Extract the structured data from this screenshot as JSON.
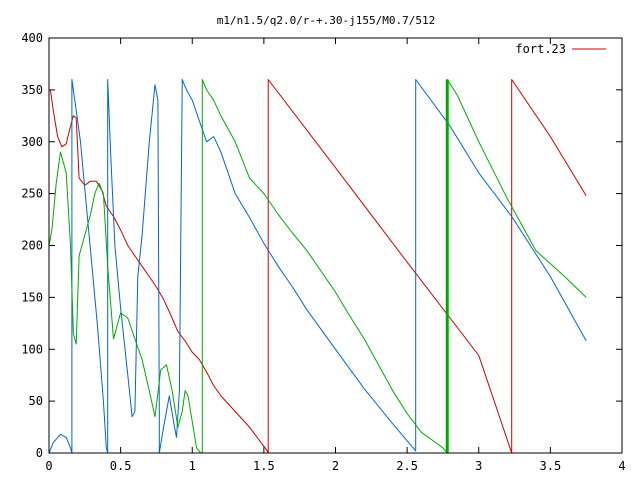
{
  "chart_data": {
    "type": "line",
    "title": "m1/n1.5/q2.0/r-+.30-j155/M0.7/512",
    "xlabel": "",
    "ylabel": "",
    "xlim": [
      0,
      4
    ],
    "ylim": [
      0,
      400
    ],
    "x_ticks": [
      0,
      0.5,
      1,
      1.5,
      2,
      2.5,
      3,
      3.5,
      4
    ],
    "x_tick_labels": [
      "0",
      "0.5",
      "1",
      "1.5",
      "2",
      "2.5",
      "3",
      "3.5",
      "4"
    ],
    "y_ticks": [
      0,
      50,
      100,
      150,
      200,
      250,
      300,
      350,
      400
    ],
    "y_tick_labels": [
      "0",
      "50",
      "100",
      "150",
      "200",
      "250",
      "300",
      "350",
      "400"
    ],
    "grid": false,
    "legend_position": "top-right",
    "series": [
      {
        "name": "fort.23",
        "color": "#cc0000",
        "x": [
          0.0,
          0.01,
          0.03,
          0.06,
          0.09,
          0.12,
          0.15,
          0.17,
          0.19,
          0.21,
          0.25,
          0.29,
          0.33,
          0.37,
          0.4,
          0.45,
          0.5,
          0.55,
          0.6,
          0.65,
          0.7,
          0.75,
          0.8,
          0.85,
          0.9,
          0.95,
          1.0,
          1.05,
          1.1,
          1.15,
          1.2,
          1.3,
          1.4,
          1.48,
          1.52,
          1.53,
          1.53,
          2.0,
          2.5,
          3.0,
          3.23,
          3.23,
          3.5,
          3.75
        ],
        "y": [
          350,
          350,
          330,
          305,
          295,
          298,
          315,
          325,
          323,
          265,
          258,
          262,
          262,
          253,
          238,
          228,
          215,
          200,
          190,
          180,
          170,
          160,
          148,
          133,
          117,
          108,
          97,
          90,
          78,
          65,
          55,
          40,
          25,
          10,
          3,
          0,
          360,
          275,
          184,
          94,
          0,
          360,
          305,
          248
        ]
      },
      {
        "name": "",
        "color": "#0066cc",
        "x": [
          0.0,
          0.03,
          0.08,
          0.12,
          0.15,
          0.16,
          0.16,
          0.18,
          0.22,
          0.26,
          0.3,
          0.34,
          0.38,
          0.4,
          0.41,
          0.41,
          0.43,
          0.46,
          0.5,
          0.55,
          0.58,
          0.6,
          0.62,
          0.65,
          0.7,
          0.74,
          0.76,
          0.77,
          0.77,
          0.8,
          0.84,
          0.87,
          0.89,
          0.91,
          0.93,
          0.93,
          0.96,
          1.0,
          1.05,
          1.1,
          1.15,
          1.2,
          1.25,
          1.3,
          1.4,
          1.5,
          1.6,
          1.7,
          1.8,
          2.0,
          2.2,
          2.4,
          2.56,
          2.56,
          2.8,
          3.0,
          3.23,
          3.5,
          3.75
        ],
        "y": [
          0,
          10,
          18,
          15,
          5,
          0,
          360,
          340,
          300,
          240,
          180,
          120,
          50,
          5,
          0,
          360,
          290,
          200,
          140,
          75,
          35,
          40,
          170,
          210,
          300,
          355,
          340,
          40,
          0,
          25,
          55,
          30,
          15,
          60,
          355,
          360,
          350,
          340,
          320,
          300,
          305,
          290,
          270,
          250,
          227,
          202,
          180,
          160,
          138,
          100,
          62,
          28,
          2,
          360,
          315,
          270,
          228,
          170,
          108
        ]
      },
      {
        "name": "",
        "color": "#00aa00",
        "x": [
          0.0,
          0.02,
          0.05,
          0.08,
          0.12,
          0.15,
          0.17,
          0.19,
          0.21,
          0.25,
          0.29,
          0.32,
          0.35,
          0.38,
          0.41,
          0.45,
          0.5,
          0.55,
          0.6,
          0.65,
          0.7,
          0.74,
          0.78,
          0.82,
          0.86,
          0.9,
          0.93,
          0.95,
          0.97,
          1.0,
          1.03,
          1.06,
          1.07,
          1.07,
          1.1,
          1.15,
          1.2,
          1.3,
          1.4,
          1.5,
          1.6,
          1.7,
          1.8,
          1.9,
          2.0,
          2.1,
          2.2,
          2.3,
          2.4,
          2.5,
          2.6,
          2.7,
          2.75,
          2.78,
          2.78,
          2.85,
          2.9,
          3.0,
          3.2,
          3.4,
          3.6,
          3.75
        ],
        "y": [
          200,
          215,
          260,
          290,
          270,
          200,
          115,
          105,
          190,
          210,
          230,
          250,
          260,
          250,
          180,
          110,
          135,
          130,
          110,
          90,
          60,
          35,
          80,
          85,
          60,
          25,
          40,
          60,
          55,
          30,
          5,
          0,
          0,
          360,
          350,
          340,
          325,
          300,
          265,
          250,
          230,
          212,
          195,
          175,
          155,
          132,
          110,
          85,
          60,
          38,
          20,
          10,
          5,
          0,
          360,
          345,
          330,
          300,
          245,
          195,
          170,
          150
        ]
      }
    ]
  }
}
